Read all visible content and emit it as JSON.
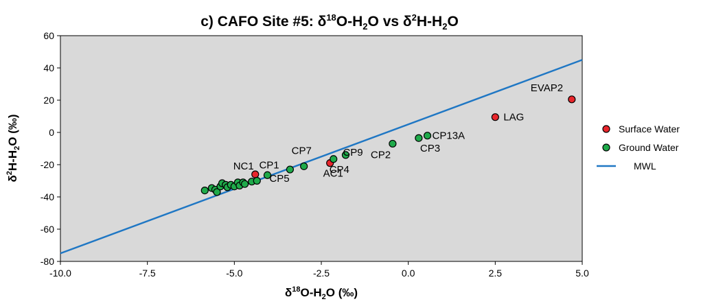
{
  "chart_data": {
    "type": "scatter",
    "title": {
      "pre": "c) CAFO Site #5:  δ",
      "sup1": "18",
      "mid1": "O-H",
      "sub1": "2",
      "mid2": "O  vs  δ",
      "sup2": "2",
      "mid3": "H-H",
      "sub2": "2",
      "post": "O"
    },
    "xlabel": {
      "pre": "δ",
      "sup": "18",
      "mid": "O-H",
      "sub": "2",
      "post": "O  (‰)"
    },
    "ylabel": {
      "pre": "δ",
      "sup": "2",
      "mid": "H-H",
      "sub": "2",
      "post": "O (‰)"
    },
    "xlim": [
      -10,
      5
    ],
    "ylim": [
      -80,
      60
    ],
    "xticks": [
      -10,
      -7.5,
      -5,
      -2.5,
      0,
      2.5,
      5
    ],
    "xtick_labels": [
      "-10.0",
      "-7.5",
      "-5.0",
      "-2.5",
      "0.0",
      "2.5",
      "5.0"
    ],
    "yticks": [
      -80,
      -60,
      -40,
      -20,
      0,
      20,
      40,
      60
    ],
    "ytick_labels": [
      "-80",
      "-60",
      "-40",
      "-20",
      "0",
      "20",
      "40",
      "60"
    ],
    "grid": false,
    "legend_position": "right",
    "series": [
      {
        "name": "Surface Water",
        "color": "#e8262c",
        "points": [
          {
            "x": -4.4,
            "y": -26,
            "label": "NC1"
          },
          {
            "x": -2.25,
            "y": -19,
            "label": "AC1"
          },
          {
            "x": 2.5,
            "y": 9.5,
            "label": "LAG"
          },
          {
            "x": 4.7,
            "y": 20.5,
            "label": "EVAP2"
          }
        ]
      },
      {
        "name": "Ground Water",
        "color": "#1faa4a",
        "points": [
          {
            "x": -4.05,
            "y": -26.5,
            "label": "CP1"
          },
          {
            "x": -3.4,
            "y": -23,
            "label": "CP5"
          },
          {
            "x": -3.0,
            "y": -21,
            "label": "CP7"
          },
          {
            "x": -2.15,
            "y": -16.5,
            "label": "CP4"
          },
          {
            "x": -1.8,
            "y": -14,
            "label": "CP9"
          },
          {
            "x": -0.45,
            "y": -7,
            "label": "CP2"
          },
          {
            "x": 0.3,
            "y": -3.5,
            "label": "CP3"
          },
          {
            "x": 0.55,
            "y": -2,
            "label": "CP13A"
          },
          {
            "x": -5.85,
            "y": -36,
            "label": ""
          },
          {
            "x": -5.65,
            "y": -34.5,
            "label": ""
          },
          {
            "x": -5.55,
            "y": -35.5,
            "label": ""
          },
          {
            "x": -5.5,
            "y": -37,
            "label": ""
          },
          {
            "x": -5.4,
            "y": -33.5,
            "label": ""
          },
          {
            "x": -5.35,
            "y": -31.5,
            "label": ""
          },
          {
            "x": -5.25,
            "y": -32.5,
            "label": ""
          },
          {
            "x": -5.2,
            "y": -34,
            "label": ""
          },
          {
            "x": -5.1,
            "y": -32.5,
            "label": ""
          },
          {
            "x": -5.0,
            "y": -33.5,
            "label": ""
          },
          {
            "x": -4.9,
            "y": -31,
            "label": ""
          },
          {
            "x": -4.85,
            "y": -33,
            "label": ""
          },
          {
            "x": -4.75,
            "y": -31,
            "label": ""
          },
          {
            "x": -4.7,
            "y": -32,
            "label": ""
          },
          {
            "x": -4.5,
            "y": -30.5,
            "label": ""
          },
          {
            "x": -4.35,
            "y": -30,
            "label": ""
          }
        ]
      },
      {
        "name": "MWL",
        "color": "#1f77c4",
        "type": "line",
        "points": [
          {
            "x": -10,
            "y": -75
          },
          {
            "x": 5,
            "y": 45
          }
        ]
      }
    ]
  }
}
